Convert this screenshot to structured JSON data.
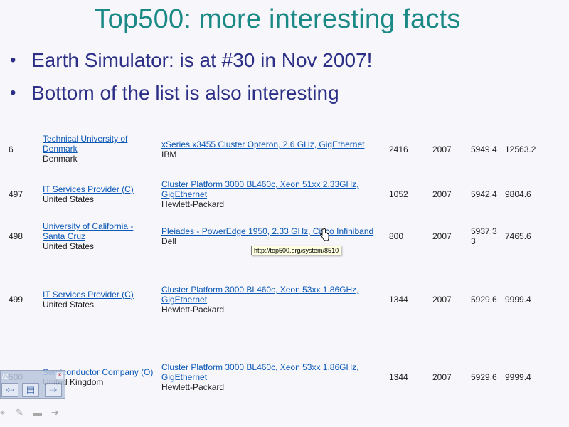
{
  "slide": {
    "title": "Top500: more interesting facts",
    "bullets": [
      "Earth Simulator: is at #30 in Nov 2007!",
      "Bottom of the list is also interesting"
    ]
  },
  "table": {
    "rows": [
      {
        "rank": "6",
        "site_link": "Technical University of Denmark",
        "site_country": "Denmark",
        "system_link": "xSeries x3455 Cluster Opteron, 2.6 GHz, GigEthernet",
        "system_vendor": "IBM",
        "processors": "2416",
        "year": "2007",
        "rmax": "5949.4",
        "rpeak": "12563.2"
      },
      {
        "rank": "497",
        "site_link": "IT Services Provider (C)",
        "site_country": "United States",
        "system_link": "Cluster Platform 3000 BL460c, Xeon 51xx 2.33GHz, GigEthernet",
        "system_vendor": "Hewlett-Packard",
        "processors": "1052",
        "year": "2007",
        "rmax": "5942.4",
        "rpeak": "9804.6"
      },
      {
        "rank": "498",
        "site_link": "University of California - Santa Cruz",
        "site_country": "United States",
        "system_link": "Pleiades - PowerEdge 1950, 2.33 GHz, Cisco Infiniband",
        "system_vendor": "Dell",
        "processors": "800",
        "year": "2007",
        "rmax": "5937.3 3",
        "rpeak": "7465.6"
      },
      {
        "rank": "499",
        "site_link": "IT Services Provider (C)",
        "site_country": "United States",
        "system_link": "Cluster Platform 3000 BL460c, Xeon 53xx 1.86GHz, GigEthernet",
        "system_vendor": "Hewlett-Packard",
        "processors": "1344",
        "year": "2007",
        "rmax": "5929.6",
        "rpeak": "9999.4"
      },
      {
        "rank": "500",
        "site_link": "Semiconductor Company (O)",
        "site_country": "United Kingdom",
        "system_link": "Cluster Platform 3000 BL460c, Xeon 53xx 1.86GHz, GigEthernet",
        "system_vendor": "Hewlett-Packard",
        "processors": "1344",
        "year": "2007",
        "rmax": "5929.6",
        "rpeak": "9999.4"
      }
    ]
  },
  "tooltip": {
    "text": "http://top500.org/system/8510"
  },
  "nav": {
    "page_text": "/2",
    "close": "×",
    "prev": "⇦",
    "menu": "▤",
    "next": "⇨"
  },
  "tools": {
    "icons": [
      "pointer-icon",
      "pen-icon",
      "highlighter-icon",
      "forward-icon"
    ]
  },
  "colors": {
    "title": "#1b8a87",
    "bullet_text": "#2c2f86",
    "link": "#0b58b6",
    "background": "#f6f6fb"
  }
}
